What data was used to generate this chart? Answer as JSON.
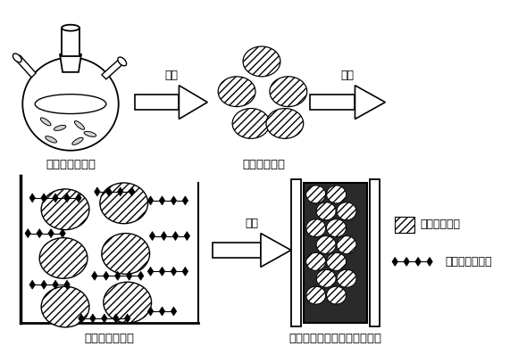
{
  "bg_color": "#ffffff",
  "label_flask": "无皂乳液聚合法",
  "label_ps_balls": "聚苯乙烯小球",
  "label_deposition": "恒温垂直沉积法",
  "label_crystal": "聚苯乙烯－二氧化硅胶体晶体",
  "label_clean": "清洗",
  "label_disperse": "分散",
  "label_dry": "干燥",
  "legend_ps": "聚苯乙烯小球",
  "legend_sio2": "二氧化硅前驱体",
  "figsize": [
    5.71,
    4.07
  ],
  "dpi": 100
}
